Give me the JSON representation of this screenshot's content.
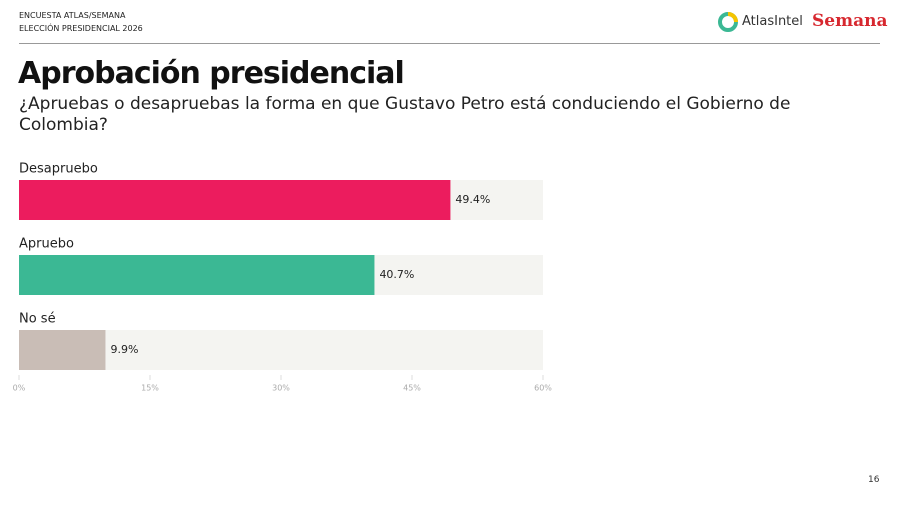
{
  "header": {
    "source_line1": "ENCUESTA ATLAS/SEMANA",
    "source_line2": "ELECCIÓN PRESIDENCIAL 2026",
    "logo_left": "AtlasIntel",
    "logo_right": "Semana"
  },
  "chart_data": {
    "type": "hbar",
    "title": "Aprobación presidencial",
    "subtitle": "¿Apruebas o desapruebas la forma en que Gustavo Petro está conduciendo el Gobierno de Colombia?",
    "categories": [
      "Desapruebo",
      "Apruebo",
      "No sé"
    ],
    "values": [
      49.4,
      40.7,
      9.9
    ],
    "value_labels": [
      "49.4%",
      "40.7%",
      "9.9%"
    ],
    "colors": [
      "#ec1c5e",
      "#3bb894",
      "#c9bdb6"
    ],
    "xlim": [
      0,
      60
    ],
    "xticks": [
      {
        "value": 0,
        "label": "0%"
      },
      {
        "value": 15,
        "label": "15%"
      },
      {
        "value": 30,
        "label": "30%"
      },
      {
        "value": 45,
        "label": "45%"
      },
      {
        "value": 60,
        "label": "60%"
      }
    ]
  },
  "footer": {
    "page_number": "16"
  }
}
